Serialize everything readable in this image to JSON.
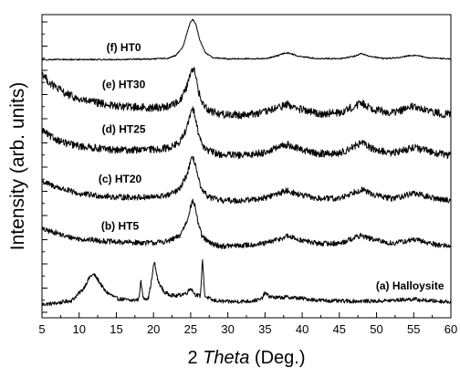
{
  "chart_data": {
    "type": "line",
    "xlabel_prefix": "2 ",
    "xlabel_italic": "Theta",
    "xlabel_suffix": " (Deg.)",
    "ylabel": "Intensity (arb. units)",
    "xlim": [
      5,
      60
    ],
    "x_ticks": [
      5,
      10,
      15,
      20,
      25,
      30,
      35,
      40,
      45,
      50,
      55,
      60
    ],
    "y_ticks_labeled": false,
    "grid": false,
    "series": [
      {
        "name": "(a) Halloysite",
        "baseline": 0.0,
        "noise": 0.006,
        "x": [
          5,
          7,
          9,
          10.5,
          11.5,
          12,
          12.5,
          13.5,
          15,
          17,
          18,
          18.3,
          18.6,
          19.3,
          19.8,
          20.1,
          20.6,
          21.5,
          23,
          24.5,
          25,
          25.6,
          26.3,
          26.6,
          26.9,
          28,
          30,
          33,
          34.5,
          35,
          35.5,
          36.5,
          38,
          40,
          42,
          45,
          48,
          50,
          52,
          54,
          55,
          56,
          58,
          60
        ],
        "y": [
          0.0,
          0.004,
          0.012,
          0.045,
          0.085,
          0.09,
          0.075,
          0.04,
          0.018,
          0.012,
          0.015,
          0.07,
          0.02,
          0.018,
          0.08,
          0.13,
          0.07,
          0.035,
          0.025,
          0.035,
          0.05,
          0.03,
          0.025,
          0.135,
          0.025,
          0.012,
          0.008,
          0.01,
          0.015,
          0.035,
          0.025,
          0.02,
          0.022,
          0.018,
          0.013,
          0.01,
          0.01,
          0.01,
          0.012,
          0.015,
          0.016,
          0.013,
          0.01,
          0.008
        ]
      },
      {
        "name": "(b) HT5",
        "baseline": 0.175,
        "noise": 0.008,
        "x": [
          5,
          6,
          7,
          8,
          10,
          15,
          20,
          22,
          23.5,
          24.5,
          25,
          25.3,
          25.6,
          26,
          26.5,
          27.5,
          29,
          32,
          35,
          37,
          38,
          39.5,
          42,
          45,
          47,
          48,
          49.5,
          52,
          54,
          55,
          56,
          58,
          60
        ],
        "y": [
          0.05,
          0.045,
          0.04,
          0.03,
          0.022,
          0.012,
          0.01,
          0.015,
          0.03,
          0.075,
          0.12,
          0.135,
          0.12,
          0.07,
          0.03,
          0.01,
          0.0,
          0.002,
          0.008,
          0.022,
          0.03,
          0.02,
          0.008,
          0.008,
          0.025,
          0.032,
          0.02,
          0.008,
          0.015,
          0.02,
          0.015,
          0.005,
          0.0
        ]
      },
      {
        "name": "(c) HT20",
        "baseline": 0.31,
        "noise": 0.009,
        "x": [
          5,
          6,
          8,
          10,
          15,
          20,
          22,
          23.5,
          24.5,
          25,
          25.3,
          25.6,
          26,
          26.5,
          27.5,
          29,
          32,
          35,
          37,
          38,
          39.5,
          42,
          45,
          47,
          48,
          49.5,
          52,
          54,
          55,
          56,
          58,
          60
        ],
        "y": [
          0.06,
          0.05,
          0.035,
          0.022,
          0.012,
          0.012,
          0.018,
          0.035,
          0.08,
          0.12,
          0.13,
          0.115,
          0.07,
          0.03,
          0.012,
          0.002,
          0.002,
          0.01,
          0.025,
          0.032,
          0.02,
          0.008,
          0.008,
          0.028,
          0.035,
          0.02,
          0.008,
          0.018,
          0.025,
          0.018,
          0.008,
          0.002
        ]
      },
      {
        "name": "(d) HT25",
        "baseline": 0.445,
        "noise": 0.011,
        "x": [
          5,
          6,
          8,
          10,
          15,
          20,
          22,
          23.5,
          24.5,
          25,
          25.3,
          25.6,
          26,
          26.5,
          27.5,
          29,
          32,
          35,
          37,
          38,
          39.5,
          42,
          45,
          47,
          48,
          49.5,
          52,
          54,
          55,
          56,
          58,
          60
        ],
        "y": [
          0.08,
          0.06,
          0.04,
          0.03,
          0.018,
          0.02,
          0.025,
          0.04,
          0.085,
          0.13,
          0.14,
          0.125,
          0.075,
          0.035,
          0.015,
          0.005,
          0.002,
          0.012,
          0.028,
          0.035,
          0.022,
          0.008,
          0.008,
          0.03,
          0.04,
          0.022,
          0.008,
          0.02,
          0.028,
          0.02,
          0.01,
          0.002
        ]
      },
      {
        "name": "(e) HT30",
        "baseline": 0.565,
        "noise": 0.012,
        "x": [
          5,
          6,
          8,
          10,
          15,
          20,
          22,
          23.5,
          24.5,
          25,
          25.3,
          25.6,
          26,
          26.5,
          27.5,
          29,
          32,
          35,
          37,
          38,
          39.5,
          42,
          45,
          47,
          48,
          49.5,
          52,
          54,
          55,
          56,
          58,
          60
        ],
        "y": [
          0.13,
          0.1,
          0.07,
          0.05,
          0.03,
          0.025,
          0.03,
          0.045,
          0.09,
          0.135,
          0.145,
          0.13,
          0.08,
          0.04,
          0.018,
          0.006,
          0.004,
          0.012,
          0.028,
          0.035,
          0.022,
          0.008,
          0.01,
          0.03,
          0.04,
          0.022,
          0.01,
          0.022,
          0.03,
          0.02,
          0.01,
          0.005
        ]
      },
      {
        "name": "(f) HT0",
        "baseline": 0.735,
        "noise": 0.002,
        "x": [
          5,
          10,
          15,
          20,
          22,
          23,
          24,
          24.5,
          25,
          25.3,
          25.7,
          26.2,
          27,
          28,
          30,
          35,
          36.5,
          37.5,
          38,
          38.5,
          39.5,
          42,
          45,
          47,
          48,
          49,
          51,
          53,
          54.5,
          55.5,
          57,
          60
        ],
        "y": [
          0.0,
          0.0,
          0.0,
          0.002,
          0.004,
          0.012,
          0.04,
          0.08,
          0.115,
          0.12,
          0.105,
          0.06,
          0.02,
          0.006,
          0.002,
          0.003,
          0.01,
          0.018,
          0.02,
          0.018,
          0.01,
          0.003,
          0.003,
          0.01,
          0.018,
          0.01,
          0.003,
          0.006,
          0.012,
          0.012,
          0.005,
          0.002
        ]
      }
    ]
  }
}
